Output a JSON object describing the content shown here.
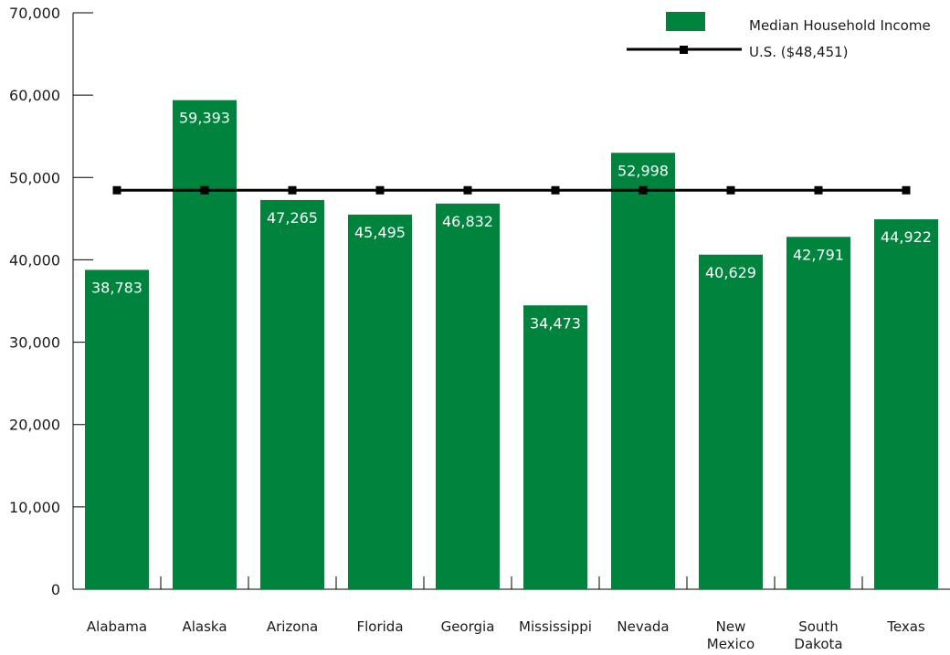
{
  "chart_data": {
    "type": "bar",
    "categories": [
      [
        "Alabama"
      ],
      [
        "Alaska"
      ],
      [
        "Arizona"
      ],
      [
        "Florida"
      ],
      [
        "Georgia"
      ],
      [
        "Mississippi"
      ],
      [
        "Nevada"
      ],
      [
        "New",
        "Mexico"
      ],
      [
        "South",
        "Dakota"
      ],
      [
        "Texas"
      ]
    ],
    "series": [
      {
        "name": "Median Household Income",
        "type": "bar",
        "color": "#00843d",
        "values": [
          38783,
          59393,
          47265,
          45495,
          46832,
          34473,
          52998,
          40629,
          42791,
          44922
        ],
        "labels": [
          "38,783",
          "59,393",
          "47,265",
          "45,495",
          "46,832",
          "34,473",
          "52,998",
          "40,629",
          "42,791",
          "44,922"
        ]
      },
      {
        "name": "U.S. ($48,451)",
        "type": "line",
        "color": "#000000",
        "value": 48451
      }
    ],
    "ylim": [
      0,
      70000
    ],
    "yticks": [
      0,
      10000,
      20000,
      30000,
      40000,
      50000,
      60000,
      70000
    ],
    "ytick_labels": [
      "0",
      "10,000",
      "20,000",
      "30,000",
      "40,000",
      "50,000",
      "60,000",
      "70,000"
    ],
    "legend_position": "top-right",
    "grid": false
  }
}
